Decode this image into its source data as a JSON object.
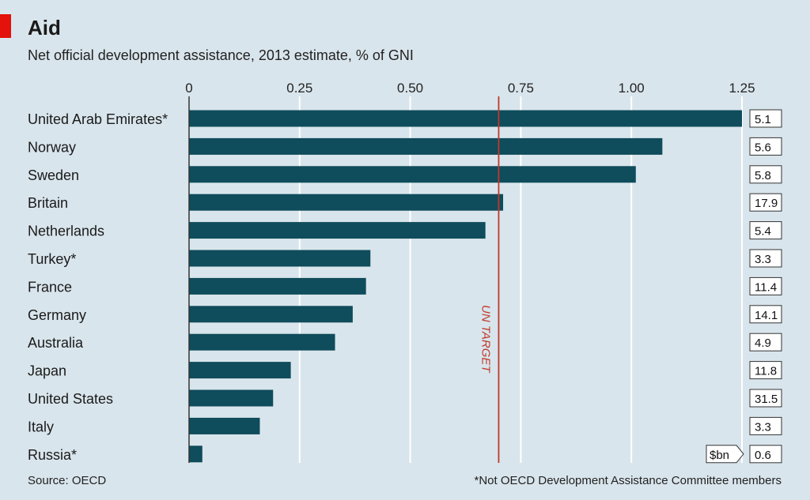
{
  "colors": {
    "background": "#d9e5ec",
    "bar": "#0f4c5c",
    "accent": "#e3120b",
    "gridline": "#ffffff",
    "target_line": "#c0392b"
  },
  "chart_data": {
    "type": "bar",
    "orientation": "horizontal",
    "title": "Aid",
    "subtitle": "Net official development assistance, 2013 estimate, % of GNI",
    "categories": [
      "United Arab Emirates*",
      "Norway",
      "Sweden",
      "Britain",
      "Netherlands",
      "Turkey*",
      "France",
      "Germany",
      "Australia",
      "Japan",
      "United States",
      "Italy",
      "Russia*"
    ],
    "values": [
      1.25,
      1.07,
      1.01,
      0.71,
      0.67,
      0.41,
      0.4,
      0.37,
      0.33,
      0.23,
      0.19,
      0.16,
      0.03
    ],
    "secondary_label": "$bn",
    "secondary_values": [
      "5.1",
      "5.6",
      "5.8",
      "17.9",
      "5.4",
      "3.3",
      "11.4",
      "14.1",
      "4.9",
      "11.8",
      "31.5",
      "3.3",
      "0.6"
    ],
    "xlim": [
      0,
      1.25
    ],
    "ticks": [
      0,
      0.25,
      0.5,
      0.75,
      1.0,
      1.25
    ],
    "tick_labels": [
      "0",
      "0.25",
      "0.50",
      "0.75",
      "1.00",
      "1.25"
    ],
    "reference_line": {
      "value": 0.7,
      "label": "UN TARGET"
    },
    "grid": true,
    "source": "Source: OECD",
    "footnote": "*Not OECD Development Assistance Committee members"
  }
}
